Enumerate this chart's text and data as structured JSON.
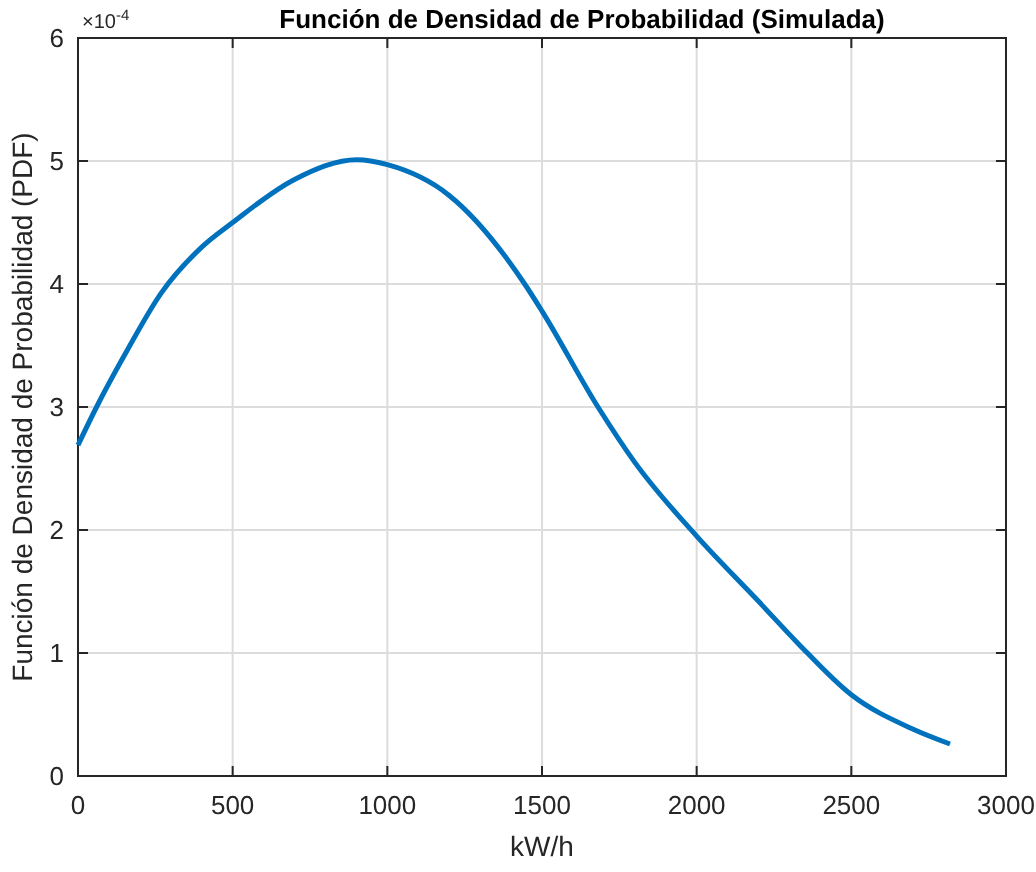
{
  "chart_data": {
    "type": "line",
    "title": "Función de Densidad de Probabilidad (Simulada)",
    "xlabel": "kW/h",
    "ylabel": "Función de Densidad de Probabilidad (PDF)",
    "annotations": [
      "×10$^{-4}$"
    ],
    "x": [
      0,
      60,
      150,
      270,
      400,
      500,
      700,
      901,
      1000,
      1200,
      1444,
      1500,
      1681,
      1800,
      2000,
      2200,
      2327,
      2500,
      2700,
      2819
    ],
    "series": [
      {
        "color": "#0072bd",
        "values": [
          2.69,
          3.0,
          3.42,
          3.93,
          4.3,
          4.5,
          4.85,
          5.01,
          4.97,
          4.72,
          4.0,
          3.78,
          3.0,
          2.55,
          1.95,
          1.42,
          1.08,
          0.66,
          0.38,
          0.26
        ]
      }
    ],
    "xlim": [
      0,
      3000
    ],
    "xticks": [
      0,
      500,
      1000,
      1500,
      2000,
      2500,
      3000
    ],
    "ylim": [
      0,
      6
    ],
    "yticks": [
      0,
      1,
      2,
      3,
      4,
      5,
      6
    ],
    "grid": true,
    "marker": "none",
    "line_style": "solid"
  }
}
